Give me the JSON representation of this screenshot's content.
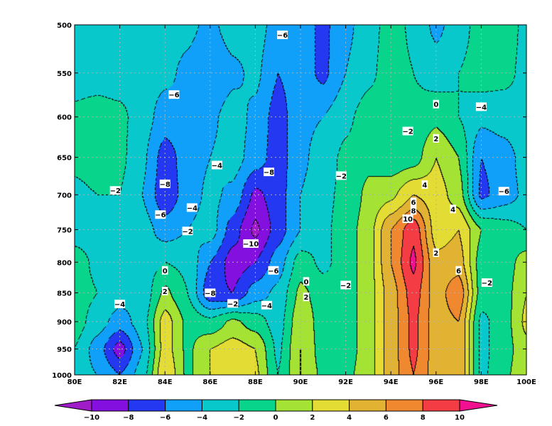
{
  "chart_data": {
    "type": "heatmap",
    "style": "filled-contour",
    "title": "",
    "xlabel": "",
    "ylabel": "",
    "x_ticks": [
      "80E",
      "82E",
      "84E",
      "86E",
      "88E",
      "90E",
      "92E",
      "94E",
      "96E",
      "98E",
      "100E"
    ],
    "y_ticks": [
      "500",
      "550",
      "600",
      "650",
      "700",
      "750",
      "800",
      "850",
      "900",
      "950",
      "1000"
    ],
    "xlim": [
      80,
      100
    ],
    "ylim": [
      1000,
      500
    ],
    "y_scale": "log",
    "y_reversed": true,
    "grid": true,
    "lon": [
      80,
      81,
      82,
      83,
      84,
      85,
      86,
      87,
      88,
      89,
      90,
      91,
      92,
      93,
      94,
      95,
      96,
      97,
      98,
      99,
      100
    ],
    "pressure": [
      500,
      550,
      600,
      650,
      700,
      750,
      800,
      850,
      900,
      950,
      1000
    ],
    "values": [
      [
        -3,
        -3,
        -3,
        -3,
        -3,
        -3.5,
        -4.5,
        -3,
        -3,
        -5,
        -5,
        -6.5,
        -4.5,
        -3,
        -1,
        -2.5,
        -4.5,
        -3,
        -1,
        -1,
        -2.5
      ],
      [
        -3,
        -3,
        -3,
        -3,
        -3.5,
        -4.5,
        -6,
        -4.5,
        -3.5,
        -6,
        -5,
        -6.5,
        -4,
        -2.5,
        -1,
        -2,
        -3,
        -2,
        -1,
        -1.5,
        -2.5
      ],
      [
        -1.5,
        -1,
        -1.5,
        -3,
        -5,
        -4.5,
        -4.5,
        -3,
        -4.5,
        -7,
        -4.5,
        -4,
        -2.5,
        -1,
        -0.5,
        -1.5,
        -0.5,
        -2,
        -3.5,
        -3,
        -2.5
      ],
      [
        -1.5,
        -1,
        -1.5,
        -3.5,
        -7,
        -5,
        -4,
        -3,
        -5,
        -7,
        -4.5,
        -3,
        -1.5,
        -0.5,
        -1.5,
        -1,
        2,
        0,
        -6,
        -5,
        -3
      ],
      [
        -2.5,
        -2,
        -2,
        -4,
        -7.5,
        -5,
        -3.5,
        -4.5,
        -8.5,
        -7,
        -4,
        -2.5,
        -1.5,
        0.5,
        1.5,
        4,
        3,
        1,
        -6.5,
        -5,
        -3.5
      ],
      [
        -3,
        -3,
        -3,
        -3,
        -5,
        -4,
        -3,
        -7,
        -10.5,
        -7,
        -4,
        -2.5,
        -1,
        1,
        6,
        9.5,
        3,
        4,
        0,
        -1,
        -2
      ],
      [
        -1,
        -2.5,
        -3,
        -3,
        -2,
        -2.5,
        -6,
        -9,
        -8,
        -5,
        -1,
        -2.5,
        -1,
        1,
        6,
        10.5,
        4.5,
        5,
        -1,
        -1,
        1
      ],
      [
        -1,
        -2,
        -3,
        -3.5,
        0.5,
        -2,
        -7.5,
        -8,
        -5,
        -3.5,
        0.5,
        -1,
        -1,
        1,
        5,
        9,
        5,
        7.5,
        -1,
        -1,
        2
      ],
      [
        -1,
        -3,
        -5,
        -3,
        3,
        -0.5,
        -1.5,
        0.5,
        -1,
        -3,
        1.5,
        -1,
        -1,
        1,
        5,
        8.5,
        5,
        6,
        -2.5,
        -1,
        2.5
      ],
      [
        -2,
        -5,
        -9,
        -4,
        3,
        -0.5,
        2,
        3,
        2,
        -2.5,
        2,
        -1,
        -1,
        1,
        5,
        8.5,
        5,
        6,
        -2.5,
        -1,
        1.5
      ],
      [
        -3,
        -4,
        -6,
        -3,
        4,
        -0.5,
        2,
        3,
        2.5,
        -2,
        2,
        -0.5,
        -0.5,
        1,
        5,
        8,
        5,
        6,
        -2.5,
        -0.5,
        1.5
      ]
    ],
    "contour_levels": [
      -10,
      -8,
      -6,
      -4,
      -2,
      0,
      2,
      4,
      6,
      8,
      10
    ],
    "negative_contours": "dashed",
    "contour_labels": [
      {
        "lon": 89.2,
        "p": 510,
        "text": "-6"
      },
      {
        "lon": 84.4,
        "p": 574,
        "text": "-6"
      },
      {
        "lon": 84.0,
        "p": 685,
        "text": "-8"
      },
      {
        "lon": 83.8,
        "p": 728,
        "text": "-6"
      },
      {
        "lon": 86.3,
        "p": 660,
        "text": "-4"
      },
      {
        "lon": 81.8,
        "p": 694,
        "text": "-2"
      },
      {
        "lon": 88.6,
        "p": 669,
        "text": "-8"
      },
      {
        "lon": 85.2,
        "p": 718,
        "text": "-4"
      },
      {
        "lon": 85.0,
        "p": 752,
        "text": "-2"
      },
      {
        "lon": 87.8,
        "p": 771,
        "text": "-10"
      },
      {
        "lon": 88.8,
        "p": 813,
        "text": "-6"
      },
      {
        "lon": 86.0,
        "p": 850,
        "text": "-8"
      },
      {
        "lon": 88.5,
        "p": 871,
        "text": "-4"
      },
      {
        "lon": 87.0,
        "p": 868,
        "text": "-2"
      },
      {
        "lon": 82.0,
        "p": 869,
        "text": "-4"
      },
      {
        "lon": 84.0,
        "p": 813,
        "text": "0"
      },
      {
        "lon": 84.0,
        "p": 847,
        "text": "2"
      },
      {
        "lon": 90.25,
        "p": 831,
        "text": "0"
      },
      {
        "lon": 90.25,
        "p": 857,
        "text": "2"
      },
      {
        "lon": 92.0,
        "p": 837,
        "text": "-2"
      },
      {
        "lon": 91.8,
        "p": 674,
        "text": "-2"
      },
      {
        "lon": 94.75,
        "p": 617,
        "text": "-2"
      },
      {
        "lon": 96.0,
        "p": 585,
        "text": "0"
      },
      {
        "lon": 96.0,
        "p": 626,
        "text": "2"
      },
      {
        "lon": 98.0,
        "p": 588,
        "text": "-4"
      },
      {
        "lon": 99.0,
        "p": 695,
        "text": "-6"
      },
      {
        "lon": 95.5,
        "p": 686,
        "text": "4"
      },
      {
        "lon": 95.0,
        "p": 710,
        "text": "6"
      },
      {
        "lon": 95.0,
        "p": 722,
        "text": "8"
      },
      {
        "lon": 94.75,
        "p": 734,
        "text": "10"
      },
      {
        "lon": 96.75,
        "p": 720,
        "text": "4"
      },
      {
        "lon": 96.0,
        "p": 785,
        "text": "2"
      },
      {
        "lon": 97.0,
        "p": 813,
        "text": "6"
      },
      {
        "lon": 98.25,
        "p": 833,
        "text": "-2"
      }
    ],
    "colorbar": {
      "orientation": "horizontal",
      "placement": "bottom",
      "labels": [
        "−10",
        "−8",
        "−6",
        "−4",
        "−2",
        "0",
        "2",
        "4",
        "6",
        "8",
        "10"
      ],
      "colors": [
        "#a01cc8",
        "#8410e0",
        "#2338f0",
        "#10a0fa",
        "#08c8cc",
        "#08d48c",
        "#a4e234",
        "#e2dc34",
        "#e2b232",
        "#f08830",
        "#f43c44",
        "#f01090"
      ],
      "extend": "both"
    }
  }
}
